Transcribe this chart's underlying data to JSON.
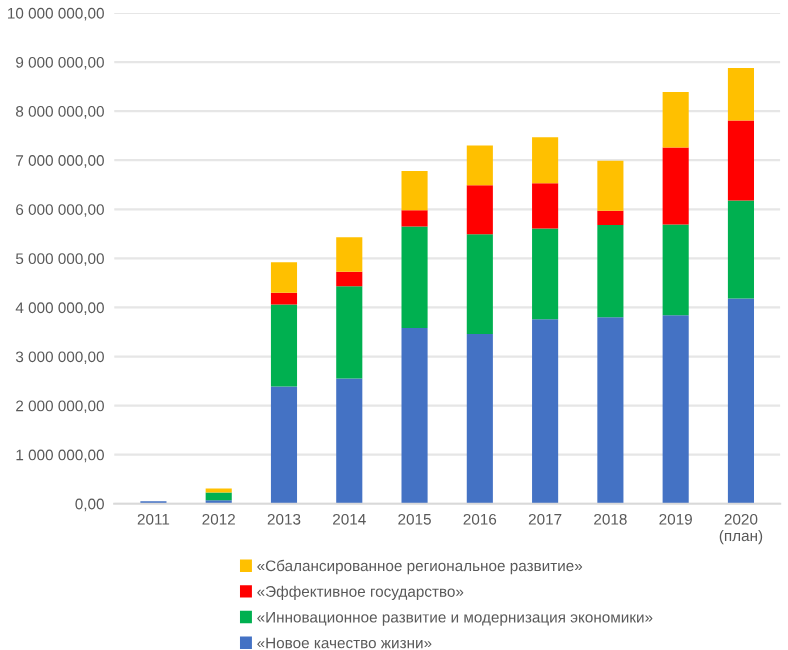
{
  "chart_data": {
    "type": "bar",
    "stacked": true,
    "categories": [
      "2011",
      "2012",
      "2013",
      "2014",
      "2015",
      "2016",
      "2017",
      "2018",
      "2019",
      "2020\n(план)"
    ],
    "series": [
      {
        "name": "«Новое качество жизни»",
        "color": "#4472c4",
        "values": [
          50000,
          70000,
          2390000,
          2550000,
          3580000,
          3460000,
          3760000,
          3800000,
          3840000,
          4180000
        ]
      },
      {
        "name": "«Инновационное развитие и модернизация экономики»",
        "color": "#00b050",
        "values": [
          null,
          160000,
          1670000,
          1880000,
          2070000,
          2030000,
          1850000,
          1880000,
          1850000,
          2000000
        ]
      },
      {
        "name": "«Эффективное государство»",
        "color": "#ff0000",
        "values": [
          null,
          null,
          240000,
          300000,
          330000,
          1000000,
          920000,
          290000,
          1570000,
          1630000
        ]
      },
      {
        "name": "«Сбалансированное региональное развитие»",
        "color": "#ffc000",
        "values": [
          null,
          80000,
          620000,
          700000,
          800000,
          810000,
          940000,
          1020000,
          1130000,
          1070000
        ]
      }
    ],
    "ylim": [
      0,
      10000000
    ],
    "yticks": [
      {
        "value": 0,
        "label": "0,00"
      },
      {
        "value": 1000000,
        "label": "1 000 000,00"
      },
      {
        "value": 2000000,
        "label": "2 000 000,00"
      },
      {
        "value": 3000000,
        "label": "3 000 000,00"
      },
      {
        "value": 4000000,
        "label": "4 000 000,00"
      },
      {
        "value": 5000000,
        "label": "5 000 000,00"
      },
      {
        "value": 6000000,
        "label": "6 000 000,00"
      },
      {
        "value": 7000000,
        "label": "7 000 000,00"
      },
      {
        "value": 8000000,
        "label": "8 000 000,00"
      },
      {
        "value": 9000000,
        "label": "9 000 000,00"
      },
      {
        "value": 10000000,
        "label": "10 000 000,00"
      }
    ],
    "grid": "y",
    "legend": "bottom"
  }
}
